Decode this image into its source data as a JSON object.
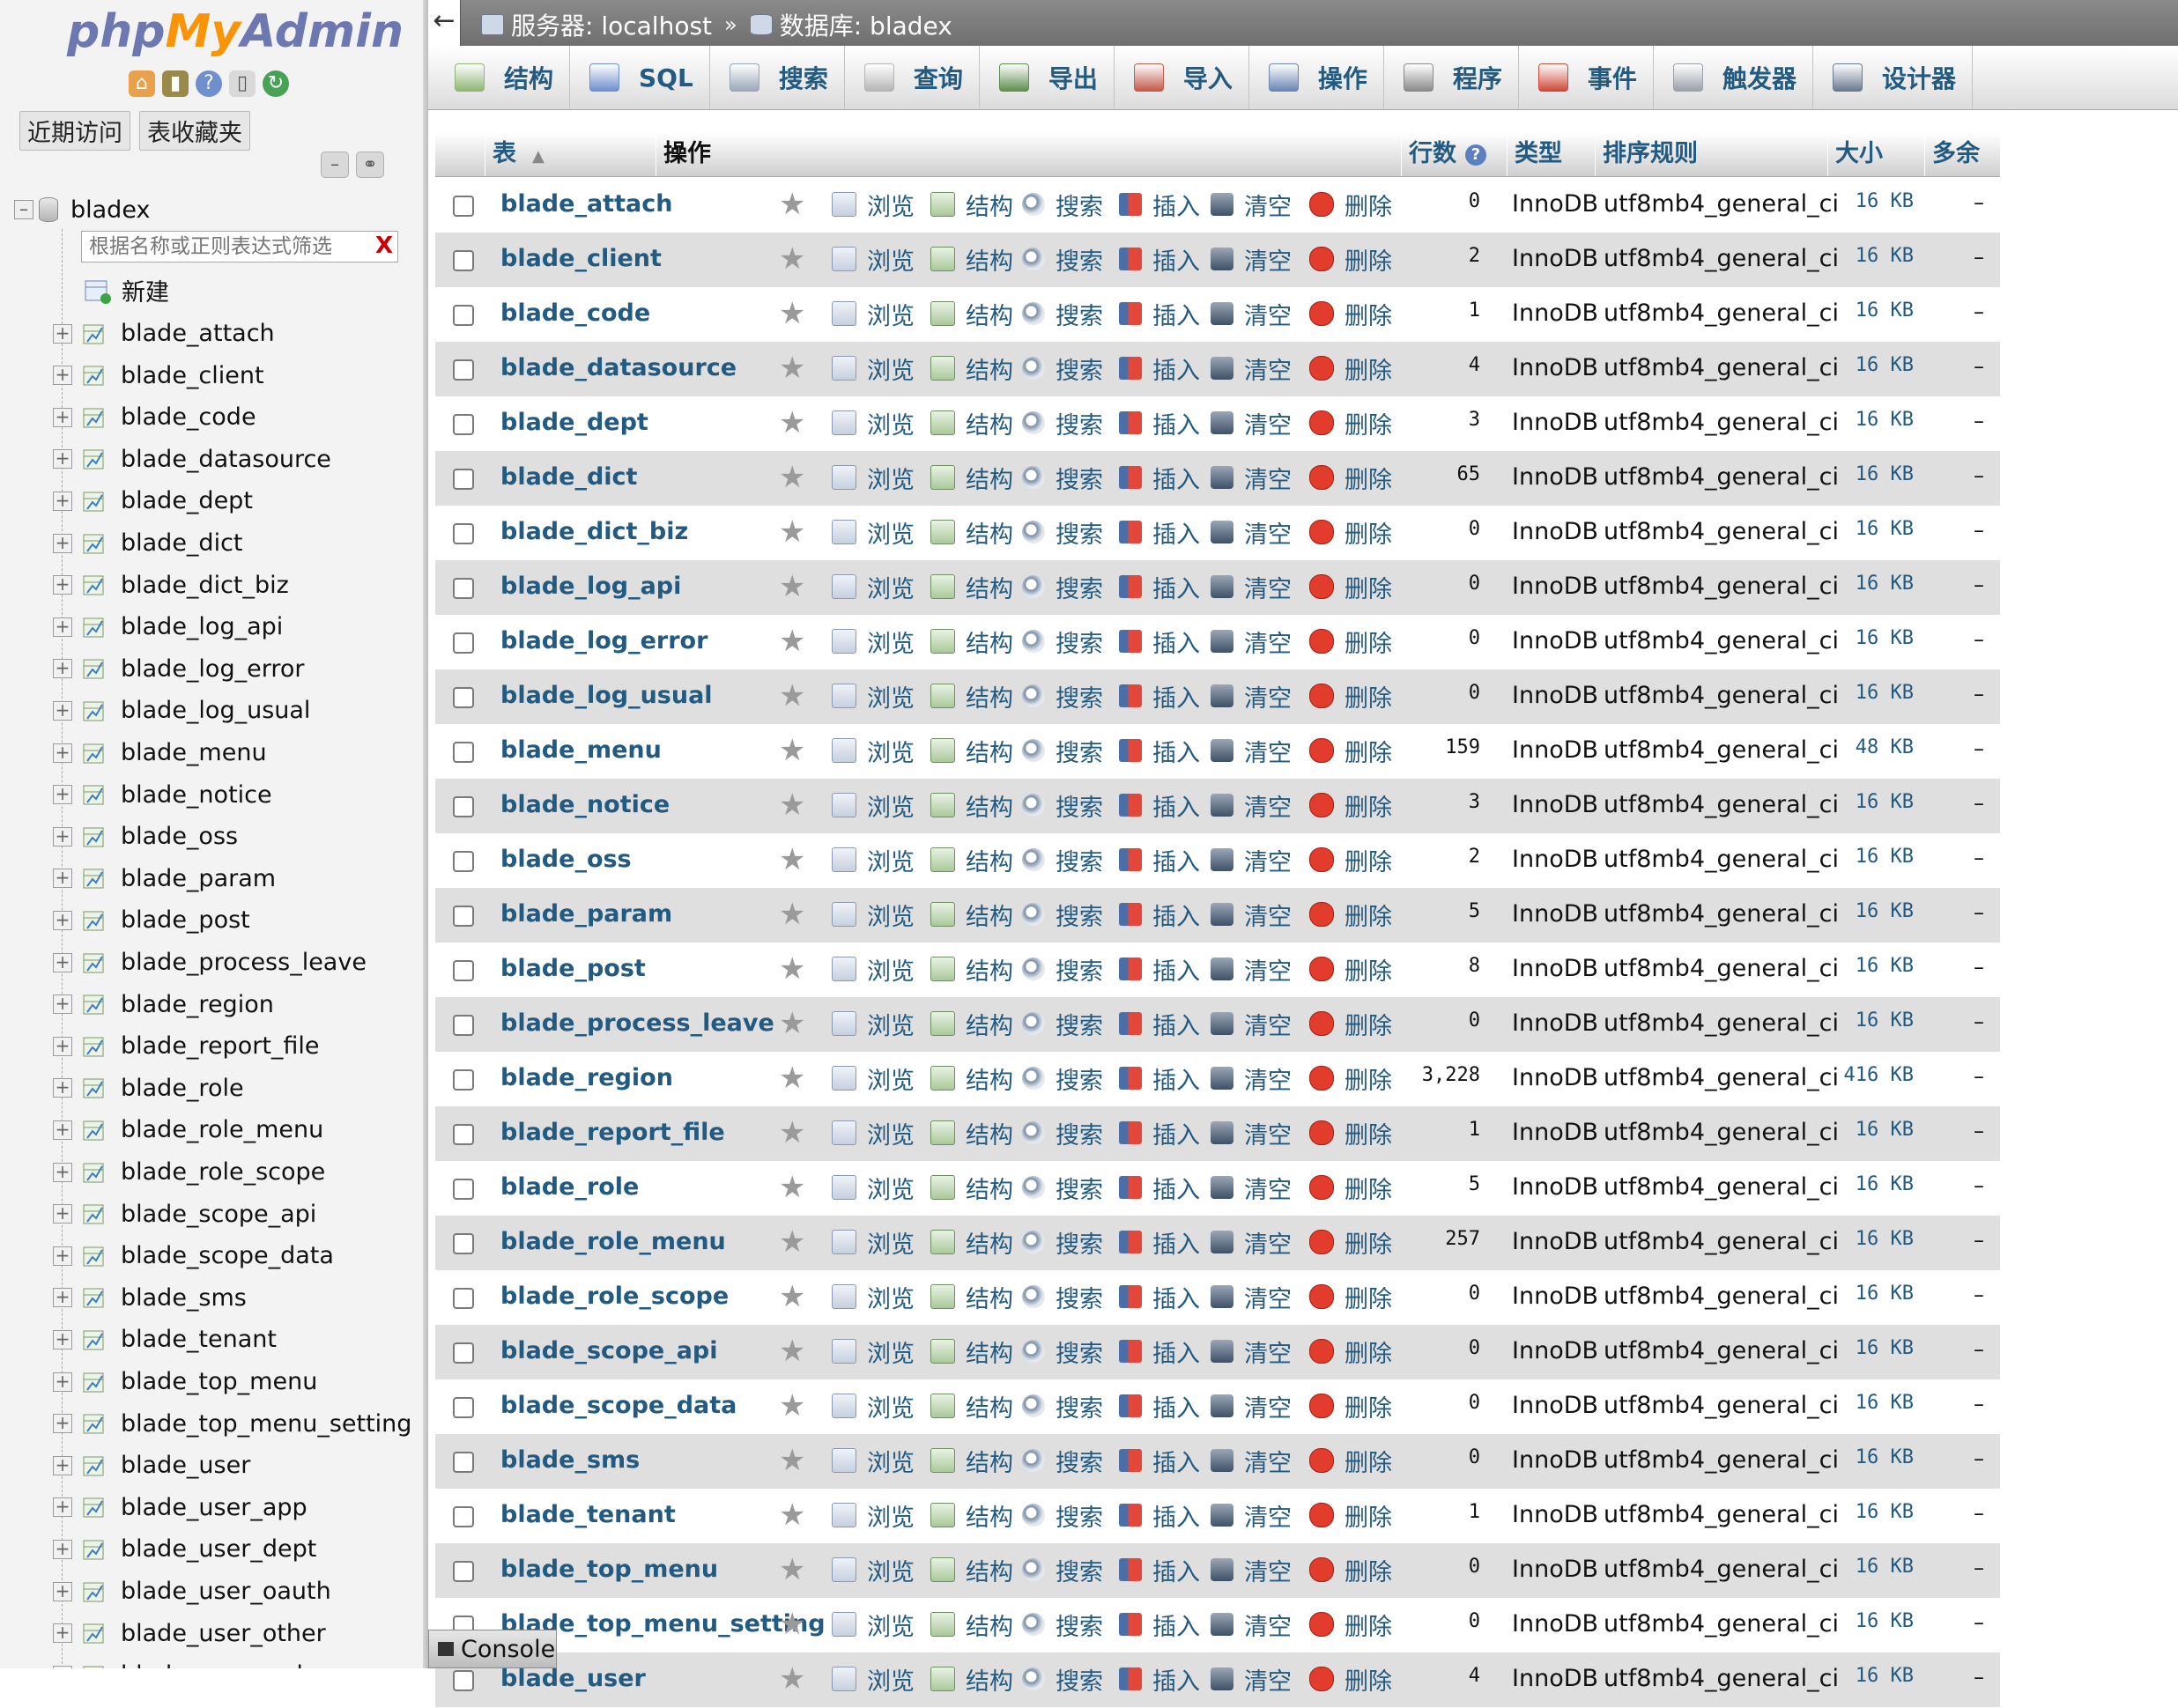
{
  "nav": {
    "logo": {
      "php": "php",
      "my": "My",
      "admin": "Admin"
    },
    "quick_icons": [
      "home-icon",
      "logout-icon",
      "help-icon",
      "docs-icon",
      "reload-icon"
    ],
    "tabs": {
      "recent": "近期访问",
      "favorites": "表收藏夹"
    },
    "database": "bladex",
    "filter_placeholder": "根据名称或正则表达式筛选",
    "filter_clear": "X",
    "new_label": "新建",
    "tables": [
      "blade_attach",
      "blade_client",
      "blade_code",
      "blade_datasource",
      "blade_dept",
      "blade_dict",
      "blade_dict_biz",
      "blade_log_api",
      "blade_log_error",
      "blade_log_usual",
      "blade_menu",
      "blade_notice",
      "blade_oss",
      "blade_param",
      "blade_post",
      "blade_process_leave",
      "blade_region",
      "blade_report_file",
      "blade_role",
      "blade_role_menu",
      "blade_role_scope",
      "blade_scope_api",
      "blade_scope_data",
      "blade_sms",
      "blade_tenant",
      "blade_top_menu",
      "blade_top_menu_setting",
      "blade_user",
      "blade_user_app",
      "blade_user_dept",
      "blade_user_oauth",
      "blade_user_other",
      "blade_user_web"
    ]
  },
  "breadcrumb": {
    "back": "←",
    "server": "服务器: localhost",
    "separator": "»",
    "database": "数据库: bladex"
  },
  "menu": {
    "tabs": [
      {
        "label": "结构",
        "icon": "structure-icon"
      },
      {
        "label": "SQL",
        "icon": "sql-icon"
      },
      {
        "label": "搜索",
        "icon": "search-icon"
      },
      {
        "label": "查询",
        "icon": "query-icon"
      },
      {
        "label": "导出",
        "icon": "export-icon"
      },
      {
        "label": "导入",
        "icon": "import-icon"
      },
      {
        "label": "操作",
        "icon": "wrench-icon"
      },
      {
        "label": "程序",
        "icon": "routines-icon"
      },
      {
        "label": "事件",
        "icon": "events-icon"
      },
      {
        "label": "触发器",
        "icon": "triggers-icon"
      },
      {
        "label": "设计器",
        "icon": "designer-icon"
      }
    ]
  },
  "table": {
    "headers": {
      "table": "表",
      "action": "操作",
      "rows": "行数",
      "type": "类型",
      "collation": "排序规则",
      "size": "大小",
      "overhead": "多余"
    },
    "actions": {
      "browse": "浏览",
      "structure": "结构",
      "search": "搜索",
      "insert": "插入",
      "empty": "清空",
      "drop": "删除"
    },
    "star": "★",
    "rows": [
      {
        "name": "blade_attach",
        "rows": "0",
        "type": "InnoDB",
        "collation": "utf8mb4_general_ci",
        "size": "16 KB",
        "overhead": "–"
      },
      {
        "name": "blade_client",
        "rows": "2",
        "type": "InnoDB",
        "collation": "utf8mb4_general_ci",
        "size": "16 KB",
        "overhead": "–"
      },
      {
        "name": "blade_code",
        "rows": "1",
        "type": "InnoDB",
        "collation": "utf8mb4_general_ci",
        "size": "16 KB",
        "overhead": "–"
      },
      {
        "name": "blade_datasource",
        "rows": "4",
        "type": "InnoDB",
        "collation": "utf8mb4_general_ci",
        "size": "16 KB",
        "overhead": "–"
      },
      {
        "name": "blade_dept",
        "rows": "3",
        "type": "InnoDB",
        "collation": "utf8mb4_general_ci",
        "size": "16 KB",
        "overhead": "–"
      },
      {
        "name": "blade_dict",
        "rows": "65",
        "type": "InnoDB",
        "collation": "utf8mb4_general_ci",
        "size": "16 KB",
        "overhead": "–"
      },
      {
        "name": "blade_dict_biz",
        "rows": "0",
        "type": "InnoDB",
        "collation": "utf8mb4_general_ci",
        "size": "16 KB",
        "overhead": "–"
      },
      {
        "name": "blade_log_api",
        "rows": "0",
        "type": "InnoDB",
        "collation": "utf8mb4_general_ci",
        "size": "16 KB",
        "overhead": "–"
      },
      {
        "name": "blade_log_error",
        "rows": "0",
        "type": "InnoDB",
        "collation": "utf8mb4_general_ci",
        "size": "16 KB",
        "overhead": "–"
      },
      {
        "name": "blade_log_usual",
        "rows": "0",
        "type": "InnoDB",
        "collation": "utf8mb4_general_ci",
        "size": "16 KB",
        "overhead": "–"
      },
      {
        "name": "blade_menu",
        "rows": "159",
        "type": "InnoDB",
        "collation": "utf8mb4_general_ci",
        "size": "48 KB",
        "overhead": "–"
      },
      {
        "name": "blade_notice",
        "rows": "3",
        "type": "InnoDB",
        "collation": "utf8mb4_general_ci",
        "size": "16 KB",
        "overhead": "–"
      },
      {
        "name": "blade_oss",
        "rows": "2",
        "type": "InnoDB",
        "collation": "utf8mb4_general_ci",
        "size": "16 KB",
        "overhead": "–"
      },
      {
        "name": "blade_param",
        "rows": "5",
        "type": "InnoDB",
        "collation": "utf8mb4_general_ci",
        "size": "16 KB",
        "overhead": "–"
      },
      {
        "name": "blade_post",
        "rows": "8",
        "type": "InnoDB",
        "collation": "utf8mb4_general_ci",
        "size": "16 KB",
        "overhead": "–"
      },
      {
        "name": "blade_process_leave",
        "rows": "0",
        "type": "InnoDB",
        "collation": "utf8mb4_general_ci",
        "size": "16 KB",
        "overhead": "–"
      },
      {
        "name": "blade_region",
        "rows": "3,228",
        "type": "InnoDB",
        "collation": "utf8mb4_general_ci",
        "size": "416 KB",
        "overhead": "–"
      },
      {
        "name": "blade_report_file",
        "rows": "1",
        "type": "InnoDB",
        "collation": "utf8mb4_general_ci",
        "size": "16 KB",
        "overhead": "–"
      },
      {
        "name": "blade_role",
        "rows": "5",
        "type": "InnoDB",
        "collation": "utf8mb4_general_ci",
        "size": "16 KB",
        "overhead": "–"
      },
      {
        "name": "blade_role_menu",
        "rows": "257",
        "type": "InnoDB",
        "collation": "utf8mb4_general_ci",
        "size": "16 KB",
        "overhead": "–"
      },
      {
        "name": "blade_role_scope",
        "rows": "0",
        "type": "InnoDB",
        "collation": "utf8mb4_general_ci",
        "size": "16 KB",
        "overhead": "–"
      },
      {
        "name": "blade_scope_api",
        "rows": "0",
        "type": "InnoDB",
        "collation": "utf8mb4_general_ci",
        "size": "16 KB",
        "overhead": "–"
      },
      {
        "name": "blade_scope_data",
        "rows": "0",
        "type": "InnoDB",
        "collation": "utf8mb4_general_ci",
        "size": "16 KB",
        "overhead": "–"
      },
      {
        "name": "blade_sms",
        "rows": "0",
        "type": "InnoDB",
        "collation": "utf8mb4_general_ci",
        "size": "16 KB",
        "overhead": "–"
      },
      {
        "name": "blade_tenant",
        "rows": "1",
        "type": "InnoDB",
        "collation": "utf8mb4_general_ci",
        "size": "16 KB",
        "overhead": "–"
      },
      {
        "name": "blade_top_menu",
        "rows": "0",
        "type": "InnoDB",
        "collation": "utf8mb4_general_ci",
        "size": "16 KB",
        "overhead": "–"
      },
      {
        "name": "blade_top_menu_setting",
        "rows": "0",
        "type": "InnoDB",
        "collation": "utf8mb4_general_ci",
        "size": "16 KB",
        "overhead": "–"
      },
      {
        "name": "blade_user",
        "rows": "4",
        "type": "InnoDB",
        "collation": "utf8mb4_general_ci",
        "size": "16 KB",
        "overhead": "–"
      }
    ]
  },
  "console": {
    "label": "Console"
  }
}
